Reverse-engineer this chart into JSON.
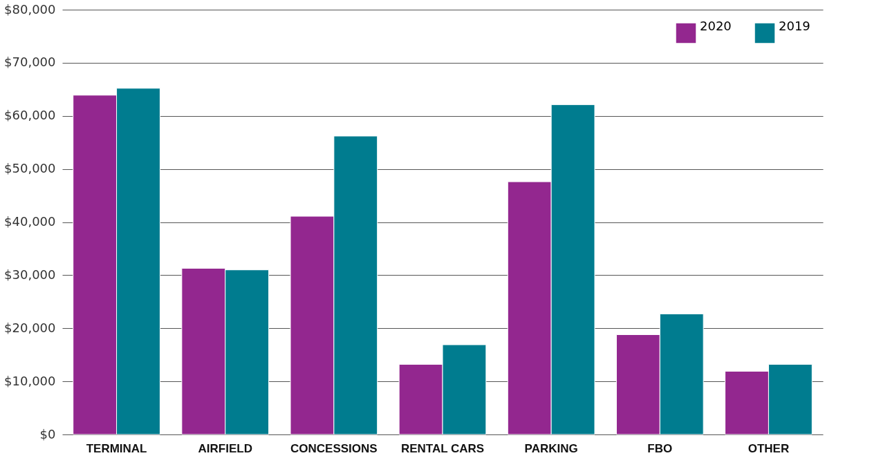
{
  "chart_data": {
    "type": "bar",
    "categories": [
      "TERMINAL",
      "AIRFIELD",
      "CONCESSIONS",
      "RENTAL CARS",
      "PARKING",
      "FBO",
      "OTHER"
    ],
    "series": [
      {
        "name": "2020",
        "color": "#93278f",
        "values": [
          63900,
          31300,
          41100,
          13200,
          47600,
          18800,
          11900
        ]
      },
      {
        "name": "2019",
        "color": "#007c8f",
        "values": [
          65200,
          31000,
          56200,
          16900,
          62100,
          22700,
          13200
        ]
      }
    ],
    "ylim": [
      0,
      80000
    ],
    "yticks": [
      {
        "value": 0,
        "label": "$0"
      },
      {
        "value": 10000,
        "label": "$10,000"
      },
      {
        "value": 20000,
        "label": "$20,000"
      },
      {
        "value": 30000,
        "label": "$30,000"
      },
      {
        "value": 40000,
        "label": "$40,000"
      },
      {
        "value": 50000,
        "label": "$50,000"
      },
      {
        "value": 60000,
        "label": "$60,000"
      },
      {
        "value": 70000,
        "label": "$70,000"
      },
      {
        "value": 80000,
        "label": "$80,000"
      }
    ],
    "grid": "y",
    "legend": "top right"
  }
}
